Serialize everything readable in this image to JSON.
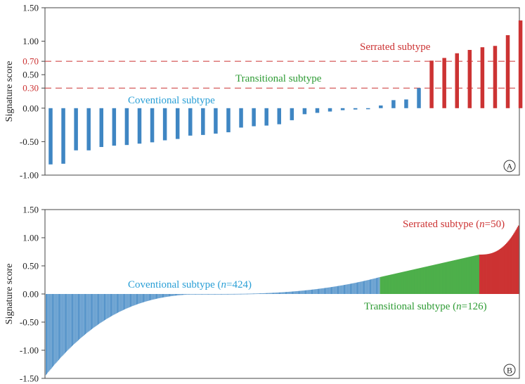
{
  "colors": {
    "conventional": "#3f86c3",
    "transitional": "#4daf4a",
    "serrated": "#cc3333",
    "threshold": "#cc3333"
  },
  "chart_data": [
    {
      "panel_label": "A",
      "type": "bar",
      "ylabel": "Signature score",
      "ylim": [
        -1.0,
        1.5
      ],
      "yticks": [
        "1.50",
        "1.00",
        "0.70",
        "0.50",
        "0.30",
        "0.00",
        "-0.50",
        "-1.00"
      ],
      "ytick_values": [
        1.5,
        1.0,
        0.7,
        0.5,
        0.3,
        0.0,
        -0.5,
        -1.0
      ],
      "red_ticks": [
        "0.70",
        "0.30"
      ],
      "thresholds": [
        0.7,
        0.3
      ],
      "annotations": {
        "serrated": "Serrated subtype",
        "transitional": "Transitional subtype",
        "conventional": "Coventional subtype"
      },
      "values": [
        -0.84,
        -0.83,
        -0.63,
        -0.63,
        -0.58,
        -0.56,
        -0.55,
        -0.53,
        -0.51,
        -0.48,
        -0.46,
        -0.41,
        -0.4,
        -0.38,
        -0.36,
        -0.29,
        -0.27,
        -0.26,
        -0.24,
        -0.18,
        -0.09,
        -0.07,
        -0.05,
        -0.03,
        -0.02,
        -0.01,
        0.04,
        0.12,
        0.13,
        0.3,
        0.71,
        0.75,
        0.82,
        0.87,
        0.91,
        0.93,
        1.09,
        1.31
      ],
      "series_groups": [
        "conventional",
        "conventional",
        "conventional",
        "conventional",
        "conventional",
        "conventional",
        "conventional",
        "conventional",
        "conventional",
        "conventional",
        "conventional",
        "conventional",
        "conventional",
        "conventional",
        "conventional",
        "conventional",
        "conventional",
        "conventional",
        "conventional",
        "conventional",
        "conventional",
        "conventional",
        "conventional",
        "conventional",
        "conventional",
        "conventional",
        "conventional",
        "conventional",
        "conventional",
        "conventional",
        "serrated",
        "serrated",
        "serrated",
        "serrated",
        "serrated",
        "serrated",
        "serrated",
        "serrated"
      ]
    },
    {
      "panel_label": "B",
      "type": "bar",
      "ylabel": "Signature score",
      "ylim": [
        -1.5,
        1.5
      ],
      "yticks": [
        "1.50",
        "1.00",
        "0.50",
        "0.00",
        "-0.50",
        "-1.00",
        "-1.50"
      ],
      "ytick_values": [
        1.5,
        1.0,
        0.5,
        0.0,
        -0.5,
        -1.0,
        -1.5
      ],
      "annotations": {
        "serrated_prefix": "Serrated subtype (",
        "serrated_n": "n",
        "serrated_suffix": "=50)",
        "transitional_prefix": "Transitional subtype (",
        "transitional_n": "n",
        "transitional_suffix": "=126)",
        "conventional_prefix": "Coventional subtype (",
        "conventional_n": "n",
        "conventional_suffix": "=424)"
      },
      "series": [
        {
          "name": "Coventional subtype",
          "count": 424,
          "value_range": [
            -1.45,
            0.3
          ]
        },
        {
          "name": "Transitional subtype",
          "count": 126,
          "value_range": [
            0.3,
            0.7
          ]
        },
        {
          "name": "Serrated subtype",
          "count": 50,
          "value_range": [
            0.7,
            1.23
          ]
        }
      ]
    }
  ]
}
